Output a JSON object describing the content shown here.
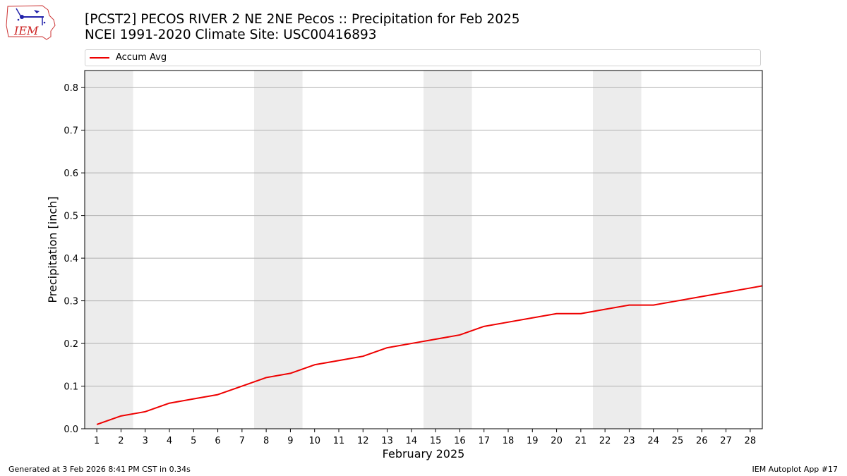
{
  "header": {
    "logo_text": "IEM",
    "title_line1": "[PCST2] PECOS RIVER 2 NE 2NE Pecos :: Precipitation for Feb 2025",
    "title_line2": "NCEI 1991-2020 Climate Site: USC00416893"
  },
  "footer": {
    "generated": "Generated at 3 Feb 2026 8:41 PM CST in 0.34s",
    "app": "IEM Autoplot App #17"
  },
  "colors": {
    "series": "#ee0000",
    "weekend_shade": "#ececec",
    "grid": "#b0b0b0"
  },
  "chart_data": {
    "type": "line",
    "title": "",
    "xlabel": "February 2025",
    "ylabel": "Precipitation [inch]",
    "xlim": [
      0.5,
      28.5
    ],
    "ylim": [
      0,
      0.84
    ],
    "x_ticks": [
      1,
      2,
      3,
      4,
      5,
      6,
      7,
      8,
      9,
      10,
      11,
      12,
      13,
      14,
      15,
      16,
      17,
      18,
      19,
      20,
      21,
      22,
      23,
      24,
      25,
      26,
      27,
      28
    ],
    "y_ticks": [
      0.0,
      0.1,
      0.2,
      0.3,
      0.4,
      0.5,
      0.6,
      0.7,
      0.8
    ],
    "y_tick_labels": [
      "0.0",
      "0.1",
      "0.2",
      "0.3",
      "0.4",
      "0.5",
      "0.6",
      "0.7",
      "0.8"
    ],
    "grid": "horizontal",
    "legend_position": "top",
    "weekend_shading": [
      [
        1,
        2
      ],
      [
        8,
        9
      ],
      [
        15,
        16
      ],
      [
        22,
        23
      ]
    ],
    "series": [
      {
        "name": "Accum Avg",
        "color": "#ee0000",
        "x": [
          1,
          2,
          3,
          4,
          5,
          6,
          7,
          8,
          9,
          10,
          11,
          12,
          13,
          14,
          15,
          16,
          17,
          18,
          19,
          20,
          21,
          22,
          23,
          24,
          25,
          26,
          27,
          28,
          28.5
        ],
        "values": [
          0.01,
          0.03,
          0.04,
          0.06,
          0.07,
          0.08,
          0.1,
          0.12,
          0.13,
          0.15,
          0.16,
          0.17,
          0.19,
          0.2,
          0.21,
          0.22,
          0.24,
          0.25,
          0.26,
          0.27,
          0.27,
          0.28,
          0.29,
          0.29,
          0.3,
          0.31,
          0.32,
          0.33,
          0.335
        ]
      }
    ]
  }
}
